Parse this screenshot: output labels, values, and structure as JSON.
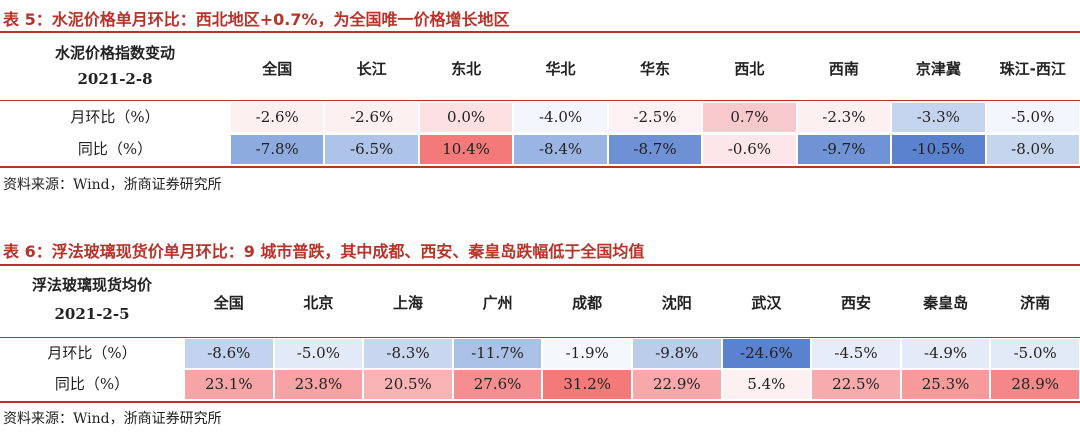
{
  "table5": {
    "caption": "表 5：水泥价格单月环比：西北地区+0.7%，为全国唯一价格增长地区",
    "header_title": "水泥价格指数变动",
    "header_date": "2021-2-8",
    "columns": [
      "全国",
      "长江",
      "东北",
      "华北",
      "华东",
      "西北",
      "西南",
      "京津冀",
      "珠江-西江"
    ],
    "rows": [
      {
        "label": "月环比（%）",
        "cells": [
          {
            "text": "-2.6%",
            "color": "#fdf0f1"
          },
          {
            "text": "-2.6%",
            "color": "#fdf0f1"
          },
          {
            "text": "0.0%",
            "color": "#fce0e2"
          },
          {
            "text": "-4.0%",
            "color": "#f3f6fc"
          },
          {
            "text": "-2.5%",
            "color": "#fdf2f3"
          },
          {
            "text": "0.7%",
            "color": "#f7c9cc"
          },
          {
            "text": "-2.3%",
            "color": "#fdf0f1"
          },
          {
            "text": "-3.3%",
            "color": "#c5d4ee"
          },
          {
            "text": "-5.0%",
            "color": "#f3f6fc"
          }
        ]
      },
      {
        "label": "同比（%）",
        "cells": [
          {
            "text": "-7.8%",
            "color": "#8eabe0"
          },
          {
            "text": "-6.5%",
            "color": "#aec3e8"
          },
          {
            "text": "10.4%",
            "color": "#f47a7a"
          },
          {
            "text": "-8.4%",
            "color": "#9ab4e3"
          },
          {
            "text": "-8.7%",
            "color": "#6d91d4"
          },
          {
            "text": "-0.6%",
            "color": "#fde6e8"
          },
          {
            "text": "-9.7%",
            "color": "#6f93d5"
          },
          {
            "text": "-10.5%",
            "color": "#5a82ce"
          },
          {
            "text": "-8.0%",
            "color": "#c6d5ee"
          }
        ]
      }
    ],
    "source": "资料来源：Wind，浙商证券研究所"
  },
  "table6": {
    "caption": "表 6：浮法玻璃现货价单月环比：9 城市普跌，其中成都、西安、秦皇岛跌幅低于全国均值",
    "header_title": "浮法玻璃现货均价",
    "header_date": "2021-2-5",
    "columns": [
      "全国",
      "北京",
      "上海",
      "广州",
      "成都",
      "沈阳",
      "武汉",
      "西安",
      "秦皇岛",
      "济南"
    ],
    "rows": [
      {
        "label": "月环比（%）",
        "cells": [
          {
            "text": "-8.6%",
            "color": "#c3d2ee"
          },
          {
            "text": "-5.0%",
            "color": "#e3eaf7"
          },
          {
            "text": "-8.3%",
            "color": "#c8d6ef"
          },
          {
            "text": "-11.7%",
            "color": "#aac0e7"
          },
          {
            "text": "-1.9%",
            "color": "#f4f7fc"
          },
          {
            "text": "-9.8%",
            "color": "#bccdec"
          },
          {
            "text": "-24.6%",
            "color": "#5a82ce"
          },
          {
            "text": "-4.5%",
            "color": "#e7edf8"
          },
          {
            "text": "-4.9%",
            "color": "#e4ebf7"
          },
          {
            "text": "-5.0%",
            "color": "#e3eaf7"
          }
        ]
      },
      {
        "label": "同比（%）",
        "cells": [
          {
            "text": "23.1%",
            "color": "#f7a4a6"
          },
          {
            "text": "23.8%",
            "color": "#f7a2a4"
          },
          {
            "text": "20.5%",
            "color": "#f9b3b5"
          },
          {
            "text": "27.6%",
            "color": "#f58e90"
          },
          {
            "text": "31.2%",
            "color": "#f47a7a"
          },
          {
            "text": "22.9%",
            "color": "#f8a8aa"
          },
          {
            "text": "5.4%",
            "color": "#fdf0f1"
          },
          {
            "text": "22.5%",
            "color": "#f8abad"
          },
          {
            "text": "25.3%",
            "color": "#f69a9c"
          },
          {
            "text": "28.9%",
            "color": "#f58789"
          }
        ]
      }
    ],
    "source": "资料来源：Wind，浙商证券研究所"
  }
}
